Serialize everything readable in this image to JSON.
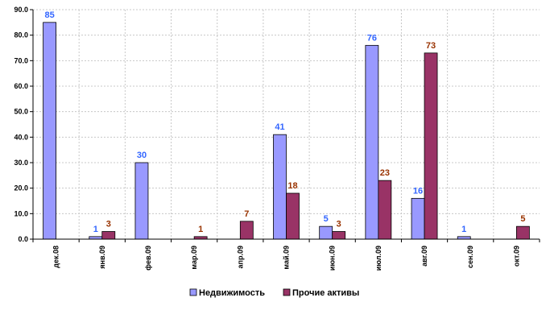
{
  "chart_data": {
    "type": "bar",
    "categories": [
      "дек.08",
      "янв.09",
      "фев.09",
      "мар.09",
      "апр.09",
      "май.09",
      "июн.09",
      "июл.09",
      "авг.09",
      "сен.09",
      "окт.09"
    ],
    "series": [
      {
        "name": "Недвижимость",
        "values": [
          85,
          1,
          30,
          0,
          0,
          41,
          5,
          76,
          16,
          1,
          0
        ],
        "labels": [
          "85",
          "1",
          "30",
          "",
          "",
          "41",
          "5",
          "76",
          "16",
          "1",
          ""
        ],
        "color": "#9999ff",
        "label_color": "#3366ff"
      },
      {
        "name": "Прочие активы",
        "values": [
          0,
          3,
          0,
          1,
          7,
          18,
          3,
          23,
          73,
          0,
          5
        ],
        "labels": [
          "",
          "3",
          "",
          "1",
          "7",
          "18",
          "3",
          "23",
          "73",
          "",
          "5"
        ],
        "color": "#993366",
        "label_color": "#993300"
      }
    ],
    "yticks": [
      "0.0",
      "10.0",
      "20.0",
      "30.0",
      "40.0",
      "50.0",
      "60.0",
      "70.0",
      "80.0",
      "90.0"
    ],
    "ylim": [
      0,
      90
    ],
    "grid": true,
    "legend": "bottom-center"
  }
}
